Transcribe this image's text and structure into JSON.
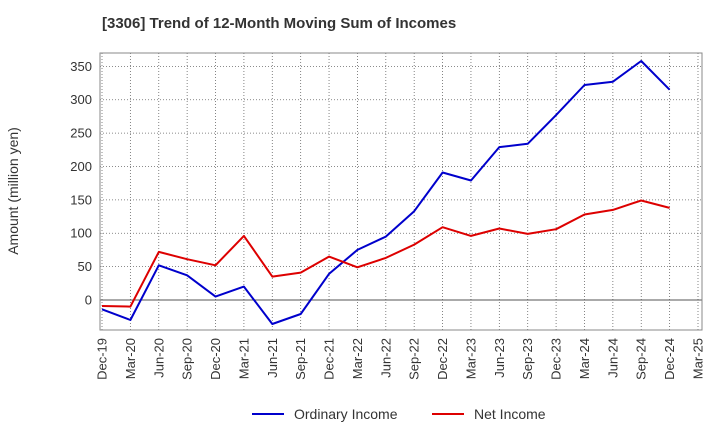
{
  "chart_data": {
    "type": "line",
    "title": "[3306]  Trend of 12-Month Moving Sum of Incomes",
    "xlabel": "",
    "ylabel": "Amount (million yen)",
    "ylim": [
      -45,
      370
    ],
    "yticks": [
      0,
      50,
      100,
      150,
      200,
      250,
      300,
      350
    ],
    "grid": true,
    "legend_position": "bottom",
    "categories": [
      "Dec-19",
      "Mar-20",
      "Jun-20",
      "Sep-20",
      "Dec-20",
      "Mar-21",
      "Jun-21",
      "Sep-21",
      "Dec-21",
      "Mar-22",
      "Jun-22",
      "Sep-22",
      "Dec-22",
      "Mar-23",
      "Jun-23",
      "Sep-23",
      "Dec-23",
      "Mar-24",
      "Jun-24",
      "Sep-24",
      "Dec-24",
      "Mar-25"
    ],
    "series": [
      {
        "name": "Ordinary Income",
        "color": "#0000cc",
        "values": [
          -14,
          -30,
          52,
          37,
          5,
          20,
          -36,
          -21,
          39,
          75,
          95,
          133,
          191,
          179,
          229,
          234,
          277,
          322,
          327,
          358,
          315,
          null
        ]
      },
      {
        "name": "Net Income",
        "color": "#dd0000",
        "values": [
          -9,
          -10,
          72,
          61,
          52,
          96,
          35,
          41,
          65,
          49,
          63,
          83,
          109,
          96,
          107,
          99,
          106,
          128,
          135,
          149,
          138,
          null
        ]
      }
    ]
  }
}
